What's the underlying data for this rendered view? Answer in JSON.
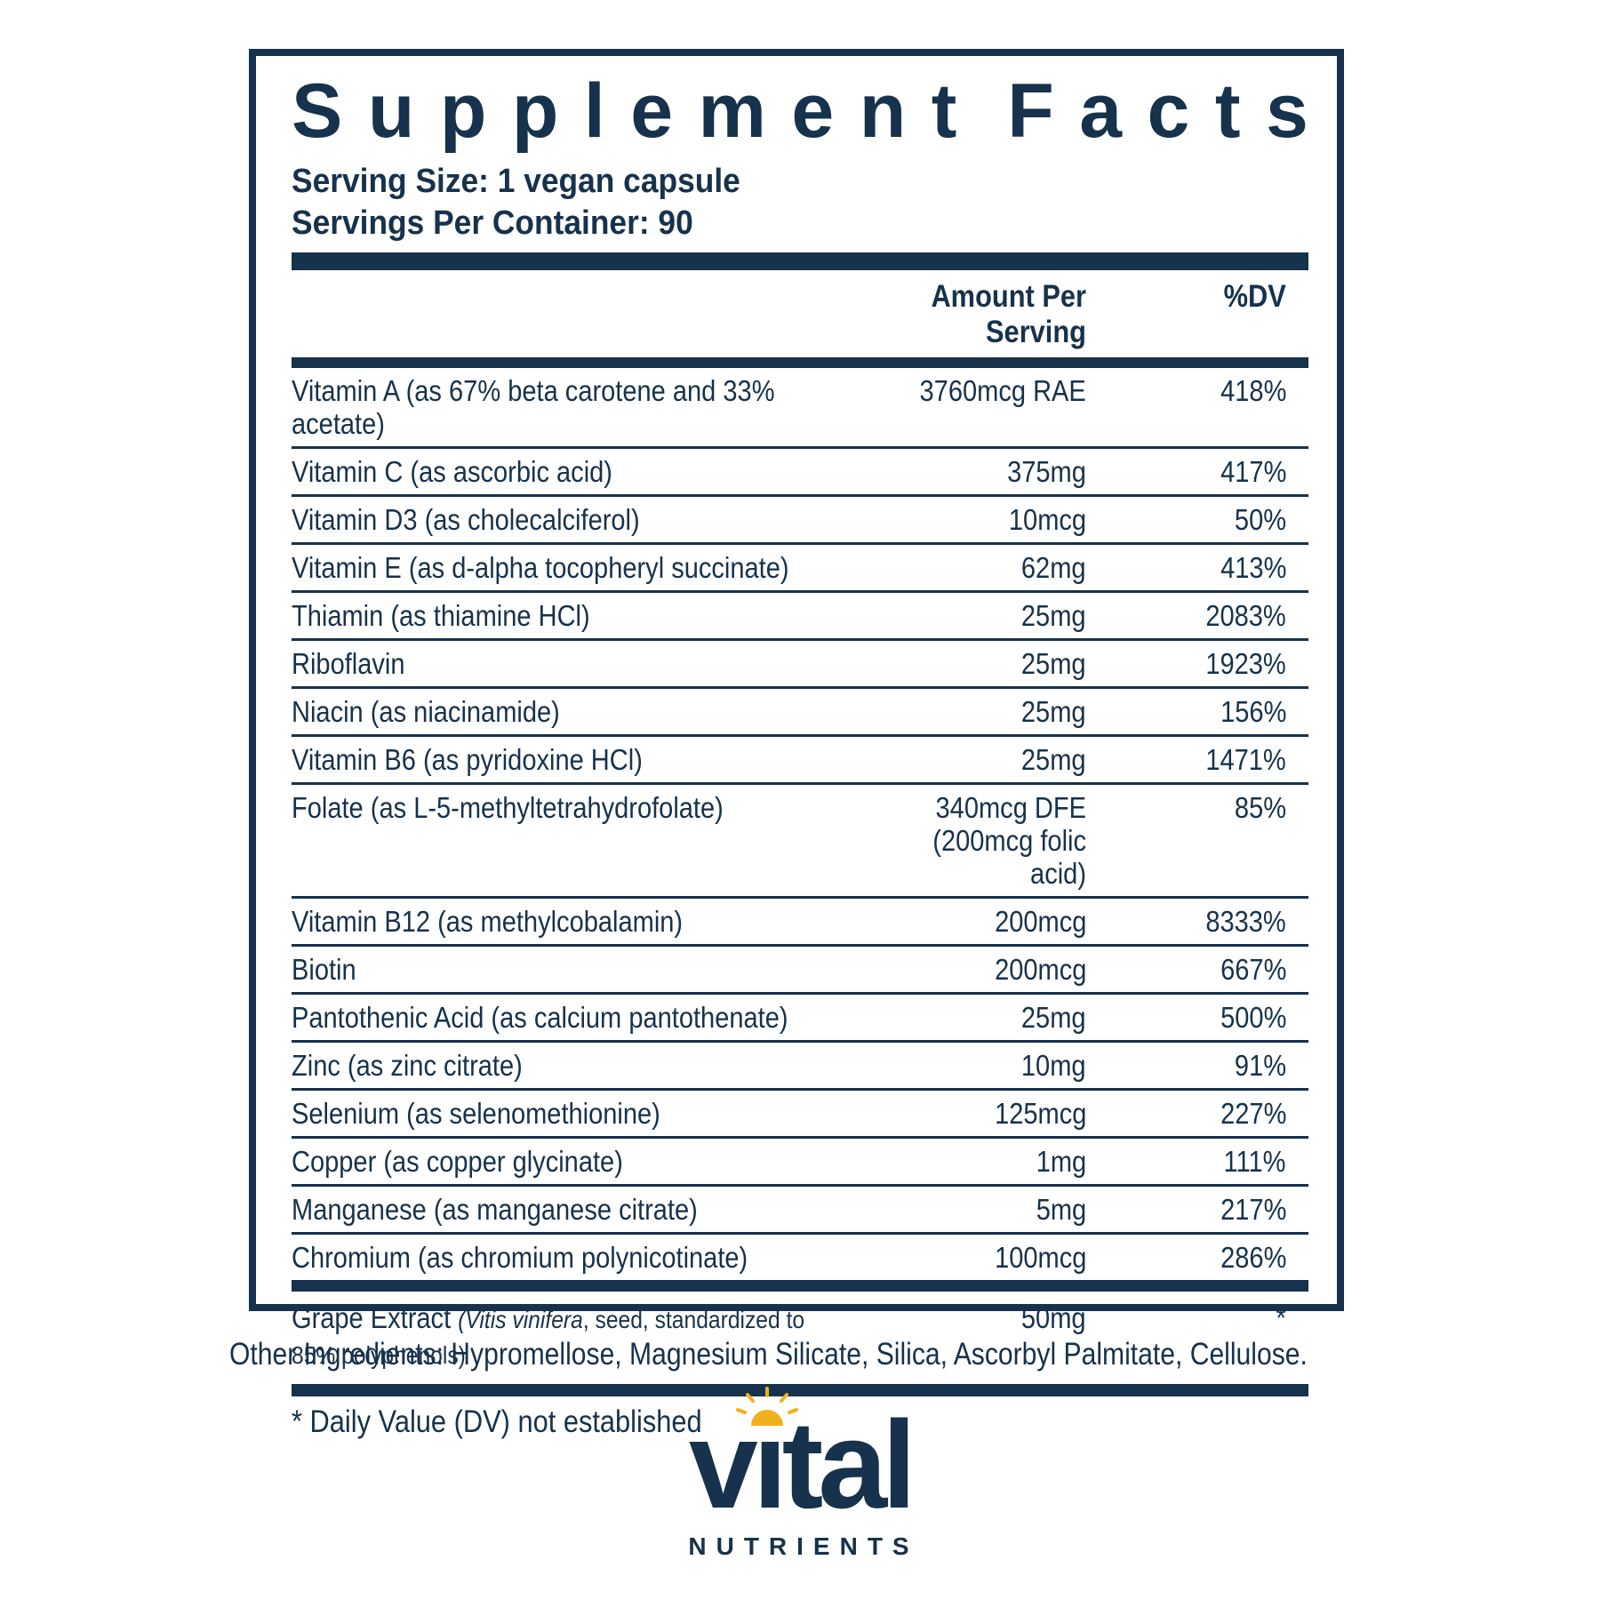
{
  "panel": {
    "title": "Supplement Facts",
    "serving_size": "Serving Size: 1 vegan capsule",
    "servings_per_container": "Servings Per Container: 90",
    "columns": {
      "amount": "Amount Per Serving",
      "dv": "%DV"
    },
    "rows": [
      {
        "label": "Vitamin A (as 67% beta carotene and 33% acetate)",
        "amount": "3760mcg RAE",
        "dv": "418%"
      },
      {
        "label": "Vitamin C (as ascorbic acid)",
        "amount": "375mg",
        "dv": "417%"
      },
      {
        "label": "Vitamin D3 (as cholecalciferol)",
        "amount": "10mcg",
        "dv": "50%"
      },
      {
        "label": "Vitamin E (as d-alpha tocopheryl succinate)",
        "amount": "62mg",
        "dv": "413%"
      },
      {
        "label": "Thiamin (as thiamine HCl)",
        "amount": "25mg",
        "dv": "2083%"
      },
      {
        "label": "Riboflavin",
        "amount": "25mg",
        "dv": "1923%"
      },
      {
        "label": "Niacin (as niacinamide)",
        "amount": "25mg",
        "dv": "156%"
      },
      {
        "label": "Vitamin B6 (as pyridoxine HCl)",
        "amount": "25mg",
        "dv": "1471%"
      },
      {
        "label": "Folate (as L-5-methyltetrahydrofolate)",
        "amount": "340mcg DFE\n(200mcg folic acid)",
        "dv": "85%"
      },
      {
        "label": "Vitamin B12 (as methylcobalamin)",
        "amount": "200mcg",
        "dv": "8333%"
      },
      {
        "label": "Biotin",
        "amount": "200mcg",
        "dv": "667%"
      },
      {
        "label": "Pantothenic Acid (as calcium pantothenate)",
        "amount": "25mg",
        "dv": "500%"
      },
      {
        "label": "Zinc (as zinc citrate)",
        "amount": "10mg",
        "dv": "91%"
      },
      {
        "label": "Selenium (as selenomethionine)",
        "amount": "125mcg",
        "dv": "227%"
      },
      {
        "label": "Copper (as copper glycinate)",
        "amount": "1mg",
        "dv": "111%"
      },
      {
        "label": "Manganese (as manganese citrate)",
        "amount": "5mg",
        "dv": "217%"
      },
      {
        "label": "Chromium (as chromium polynicotinate)",
        "amount": "100mcg",
        "dv": "286%"
      }
    ],
    "botanical_row": {
      "name": "Grape Extract ",
      "detail_open": "(",
      "detail_italic": "Vitis vinifera",
      "detail_rest": ", seed, standardized to 85% polyphenols)",
      "amount": "50mg",
      "dv": "*"
    },
    "footnote": "* Daily Value (DV) not established"
  },
  "other_ingredients": "Other Ingredients: Hypromellose, Magnesium Silicate, Silica, Ascorbyl Palmitate, Cellulose.",
  "logo": {
    "name": "vital",
    "tagline": "NUTRIENTS"
  },
  "colors": {
    "navy": "#16324c",
    "gold": "#f0b01e"
  }
}
